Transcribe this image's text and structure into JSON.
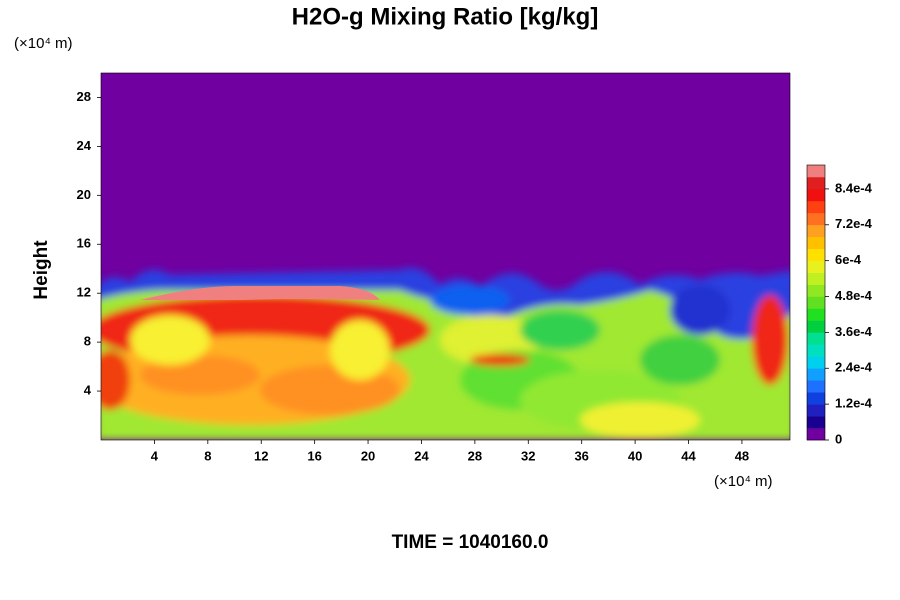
{
  "chart_data": {
    "type": "contour",
    "title": "H2O-g Mixing Ratio [kg/kg]",
    "y_label": "Height",
    "y_unit_label": "(×10⁴ m)",
    "x_unit_label": "(×10⁴ m)",
    "footer": "TIME = 1040160.0",
    "xlim": [
      0,
      51.6
    ],
    "xticks": [
      4,
      8,
      12,
      16,
      20,
      24,
      28,
      32,
      36,
      40,
      44,
      48
    ],
    "ylim": [
      0,
      30
    ],
    "yticks": [
      4,
      8,
      12,
      16,
      20,
      24,
      28
    ],
    "colorbar": {
      "lim": [
        0,
        0.00092
      ],
      "ticks": [
        0,
        {
          "value": 0.00012,
          "label": "1.2e-4"
        },
        {
          "value": 0.00024,
          "label": "2.4e-4"
        },
        {
          "value": 0.00036,
          "label": "3.6e-4"
        },
        {
          "value": 0.00048,
          "label": "4.8e-4"
        },
        {
          "value": 0.0006,
          "label": "6e-4"
        },
        {
          "value": 0.00072,
          "label": "7.2e-4"
        },
        {
          "value": 0.00084,
          "label": "8.4e-4"
        }
      ],
      "colormap": [
        "#7000a0",
        "#1a0090",
        "#2020c0",
        "#1040e0",
        "#2070ff",
        "#10a0ff",
        "#00d0f0",
        "#00e0c0",
        "#00e090",
        "#00d040",
        "#20e020",
        "#60e020",
        "#90e820",
        "#c0f020",
        "#e8f020",
        "#ffe000",
        "#ffc000",
        "#ffa020",
        "#ff7020",
        "#ff4010",
        "#f01010",
        "#e02020",
        "#f08080"
      ]
    }
  }
}
